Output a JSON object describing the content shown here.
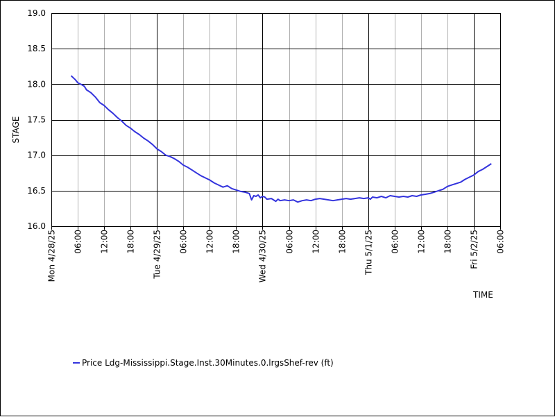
{
  "chart_data": {
    "type": "line",
    "xlabel": "TIME",
    "ylabel": "STAGE",
    "ylim": [
      16.0,
      19.0
    ],
    "yticks": [
      "16.0",
      "16.5",
      "17.0",
      "17.5",
      "18.0",
      "18.5",
      "19.0"
    ],
    "xlim_hours": [
      0,
      96
    ],
    "xticks": [
      {
        "hour": 0,
        "label": "Mon 4/28/25",
        "major": true
      },
      {
        "hour": 6,
        "label": "06:00",
        "major": false
      },
      {
        "hour": 12,
        "label": "12:00",
        "major": false
      },
      {
        "hour": 18,
        "label": "18:00",
        "major": false
      },
      {
        "hour": 24,
        "label": "Tue 4/29/25",
        "major": true
      },
      {
        "hour": 30,
        "label": "06:00",
        "major": false
      },
      {
        "hour": 36,
        "label": "12:00",
        "major": false
      },
      {
        "hour": 42,
        "label": "18:00",
        "major": false
      },
      {
        "hour": 48,
        "label": "Wed 4/30/25",
        "major": true
      },
      {
        "hour": 54,
        "label": "06:00",
        "major": false
      },
      {
        "hour": 60,
        "label": "12:00",
        "major": false
      },
      {
        "hour": 66,
        "label": "18:00",
        "major": false
      },
      {
        "hour": 72,
        "label": "Thu 5/1/25",
        "major": true
      },
      {
        "hour": 78,
        "label": "06:00",
        "major": false
      },
      {
        "hour": 84,
        "label": "12:00",
        "major": false
      },
      {
        "hour": 90,
        "label": "18:00",
        "major": false
      },
      {
        "hour": 96,
        "label": "Fri 5/2/25",
        "major": true
      },
      {
        "hour": 102,
        "label": "06:00",
        "major": false
      }
    ],
    "series": [
      {
        "name": "Price Ldg-Mississippi.Stage.Inst.30Minutes.0.lrgsShef-rev (ft)",
        "color": "#3333dd",
        "points": [
          [
            4.5,
            18.12
          ],
          [
            5.5,
            18.06
          ],
          [
            6.0,
            18.02
          ],
          [
            7.0,
            17.99
          ],
          [
            7.5,
            17.97
          ],
          [
            8.0,
            17.92
          ],
          [
            9.0,
            17.88
          ],
          [
            10.0,
            17.82
          ],
          [
            11.0,
            17.74
          ],
          [
            12.0,
            17.7
          ],
          [
            13.0,
            17.64
          ],
          [
            14.0,
            17.59
          ],
          [
            15.0,
            17.53
          ],
          [
            16.0,
            17.48
          ],
          [
            17.0,
            17.42
          ],
          [
            18.0,
            17.38
          ],
          [
            19.0,
            17.33
          ],
          [
            20.0,
            17.29
          ],
          [
            21.0,
            17.24
          ],
          [
            22.0,
            17.2
          ],
          [
            23.0,
            17.15
          ],
          [
            24.0,
            17.09
          ],
          [
            25.0,
            17.05
          ],
          [
            26.0,
            17.0
          ],
          [
            27.0,
            16.98
          ],
          [
            28.0,
            16.95
          ],
          [
            29.0,
            16.91
          ],
          [
            30.0,
            16.86
          ],
          [
            31.0,
            16.83
          ],
          [
            32.0,
            16.79
          ],
          [
            33.0,
            16.75
          ],
          [
            34.0,
            16.71
          ],
          [
            35.0,
            16.68
          ],
          [
            36.0,
            16.65
          ],
          [
            37.0,
            16.61
          ],
          [
            38.0,
            16.58
          ],
          [
            39.0,
            16.55
          ],
          [
            40.0,
            16.57
          ],
          [
            41.0,
            16.53
          ],
          [
            42.0,
            16.51
          ],
          [
            43.0,
            16.49
          ],
          [
            44.0,
            16.48
          ],
          [
            45.0,
            16.46
          ],
          [
            45.5,
            16.37
          ],
          [
            46.0,
            16.43
          ],
          [
            46.5,
            16.42
          ],
          [
            47.0,
            16.44
          ],
          [
            47.5,
            16.4
          ],
          [
            48.0,
            16.42
          ],
          [
            48.5,
            16.41
          ],
          [
            49.0,
            16.38
          ],
          [
            50.0,
            16.39
          ],
          [
            50.5,
            16.37
          ],
          [
            51.0,
            16.35
          ],
          [
            51.5,
            16.38
          ],
          [
            52.0,
            16.36
          ],
          [
            53.0,
            16.37
          ],
          [
            54.0,
            16.36
          ],
          [
            55.0,
            16.37
          ],
          [
            56.0,
            16.34
          ],
          [
            57.0,
            16.36
          ],
          [
            58.0,
            16.37
          ],
          [
            59.0,
            16.36
          ],
          [
            60.0,
            16.38
          ],
          [
            61.0,
            16.39
          ],
          [
            62.0,
            16.38
          ],
          [
            63.0,
            16.37
          ],
          [
            64.0,
            16.36
          ],
          [
            65.0,
            16.37
          ],
          [
            66.0,
            16.38
          ],
          [
            67.0,
            16.39
          ],
          [
            68.0,
            16.38
          ],
          [
            69.0,
            16.39
          ],
          [
            70.0,
            16.4
          ],
          [
            71.0,
            16.39
          ],
          [
            72.0,
            16.4
          ],
          [
            72.5,
            16.38
          ],
          [
            73.0,
            16.41
          ],
          [
            74.0,
            16.4
          ],
          [
            75.0,
            16.42
          ],
          [
            76.0,
            16.4
          ],
          [
            77.0,
            16.43
          ],
          [
            78.0,
            16.42
          ],
          [
            79.0,
            16.41
          ],
          [
            80.0,
            16.42
          ],
          [
            81.0,
            16.41
          ],
          [
            82.0,
            16.43
          ],
          [
            83.0,
            16.42
          ],
          [
            84.0,
            16.44
          ],
          [
            85.0,
            16.45
          ],
          [
            86.0,
            16.46
          ],
          [
            87.0,
            16.48
          ],
          [
            88.0,
            16.5
          ],
          [
            89.0,
            16.52
          ],
          [
            90.0,
            16.56
          ],
          [
            91.0,
            16.58
          ],
          [
            92.0,
            16.6
          ],
          [
            93.0,
            16.62
          ],
          [
            94.0,
            16.66
          ],
          [
            95.0,
            16.69
          ],
          [
            96.0,
            16.72
          ],
          [
            97.0,
            16.77
          ],
          [
            98.0,
            16.8
          ],
          [
            99.0,
            16.84
          ],
          [
            100.0,
            16.88
          ]
        ]
      }
    ]
  },
  "legend": {
    "label": "Price Ldg-Mississippi.Stage.Inst.30Minutes.0.lrgsShef-rev (ft)",
    "color": "#3333dd"
  }
}
